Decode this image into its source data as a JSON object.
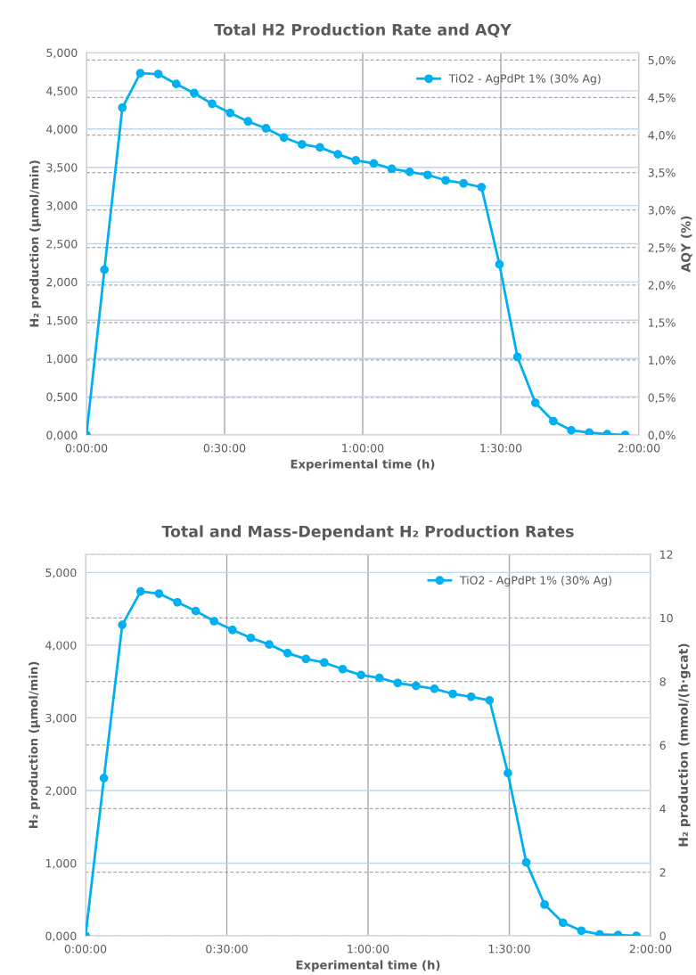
{
  "chart_data": [
    {
      "type": "line",
      "title": "Total H2 Production Rate and AQY",
      "xlabel": "Experimental time (h)",
      "ylabel": "H₂ production (µmol/min)",
      "y2label": "AQY (%)",
      "x": [
        0,
        0.065,
        0.13,
        0.195,
        0.26,
        0.325,
        0.39,
        0.455,
        0.52,
        0.585,
        0.65,
        0.715,
        0.78,
        0.845,
        0.91,
        0.975,
        1.04,
        1.105,
        1.17,
        1.235,
        1.3,
        1.365,
        1.43,
        1.495,
        1.56,
        1.625,
        1.69,
        1.755,
        1.82,
        1.885,
        1.95
      ],
      "series": [
        {
          "name": "TiO2 - AgPdPt 1% (30% Ag)",
          "color": "#00b0f0",
          "values": [
            0,
            2.16,
            4.28,
            4.73,
            4.72,
            4.59,
            4.47,
            4.33,
            4.21,
            4.1,
            4.01,
            3.89,
            3.8,
            3.76,
            3.67,
            3.59,
            3.55,
            3.48,
            3.44,
            3.4,
            3.33,
            3.29,
            3.24,
            2.23,
            1.02,
            0.42,
            0.18,
            0.06,
            0.03,
            0.01,
            0
          ]
        }
      ],
      "xlim": [
        0,
        2
      ],
      "xticks": [
        {
          "value": 0,
          "label": "0:00:00"
        },
        {
          "value": 0.5,
          "label": "0:30:00"
        },
        {
          "value": 1,
          "label": "1:00:00"
        },
        {
          "value": 1.5,
          "label": "1:30:00"
        },
        {
          "value": 2,
          "label": "2:00:00"
        }
      ],
      "ylim": [
        0,
        5
      ],
      "yticks": [
        {
          "value": 0,
          "label": "0,000"
        },
        {
          "value": 0.5,
          "label": "0,500"
        },
        {
          "value": 1,
          "label": "1,000"
        },
        {
          "value": 1.5,
          "label": "1,500"
        },
        {
          "value": 2,
          "label": "2,000"
        },
        {
          "value": 2.5,
          "label": "2,500"
        },
        {
          "value": 3,
          "label": "3,000"
        },
        {
          "value": 3.5,
          "label": "3,500"
        },
        {
          "value": 4,
          "label": "4,000"
        },
        {
          "value": 4.5,
          "label": "4,500"
        },
        {
          "value": 5,
          "label": "5,000"
        }
      ],
      "y2lim": [
        0,
        5.1
      ],
      "y2ticks": [
        {
          "value": 0,
          "label": "0,0%"
        },
        {
          "value": 0.5,
          "label": "0,5%"
        },
        {
          "value": 1,
          "label": "1,0%"
        },
        {
          "value": 1.5,
          "label": "1,5%"
        },
        {
          "value": 2,
          "label": "2,0%"
        },
        {
          "value": 2.5,
          "label": "2,5%"
        },
        {
          "value": 3,
          "label": "3,0%"
        },
        {
          "value": 3.5,
          "label": "3,5%"
        },
        {
          "value": 4,
          "label": "4,0%"
        },
        {
          "value": 4.5,
          "label": "4,5%"
        },
        {
          "value": 5,
          "label": "5,0%"
        }
      ],
      "grid": true,
      "legend": "top right",
      "marker": "circle"
    },
    {
      "type": "line",
      "title": "Total and Mass-Dependant H₂ Production Rates",
      "xlabel": "Experimental time (h)",
      "ylabel": "H₂ production (µmol/min)",
      "y2label": "H₂ production (mmol/(h·gcat)",
      "x": [
        0,
        0.065,
        0.13,
        0.195,
        0.26,
        0.325,
        0.39,
        0.455,
        0.52,
        0.585,
        0.65,
        0.715,
        0.78,
        0.845,
        0.91,
        0.975,
        1.04,
        1.105,
        1.17,
        1.235,
        1.3,
        1.365,
        1.43,
        1.495,
        1.56,
        1.625,
        1.69,
        1.755,
        1.82,
        1.885,
        1.95
      ],
      "series": [
        {
          "name": "TiO2 - AgPdPt 1% (30% Ag)",
          "color": "#00b0f0",
          "values": [
            0,
            2.17,
            4.28,
            4.74,
            4.71,
            4.59,
            4.47,
            4.33,
            4.21,
            4.1,
            4.01,
            3.89,
            3.81,
            3.76,
            3.67,
            3.59,
            3.55,
            3.48,
            3.44,
            3.4,
            3.33,
            3.29,
            3.24,
            2.24,
            1.01,
            0.43,
            0.18,
            0.07,
            0.02,
            0.01,
            0
          ]
        }
      ],
      "xlim": [
        0,
        2
      ],
      "xticks": [
        {
          "value": 0,
          "label": "0:00:00"
        },
        {
          "value": 0.5,
          "label": "0:30:00"
        },
        {
          "value": 1,
          "label": "1:00:00"
        },
        {
          "value": 1.5,
          "label": "1:30:00"
        },
        {
          "value": 2,
          "label": "2:00:00"
        }
      ],
      "ylim": [
        0,
        5.25
      ],
      "yticks": [
        {
          "value": 0,
          "label": "0,000"
        },
        {
          "value": 1,
          "label": "1,000"
        },
        {
          "value": 2,
          "label": "2,000"
        },
        {
          "value": 3,
          "label": "3,000"
        },
        {
          "value": 4,
          "label": "4,000"
        },
        {
          "value": 5,
          "label": "5,000"
        }
      ],
      "y2lim": [
        0,
        12
      ],
      "y2ticks": [
        0,
        2,
        4,
        6,
        8,
        10,
        12
      ],
      "grid": true,
      "legend": "top right",
      "marker": "circle"
    }
  ]
}
